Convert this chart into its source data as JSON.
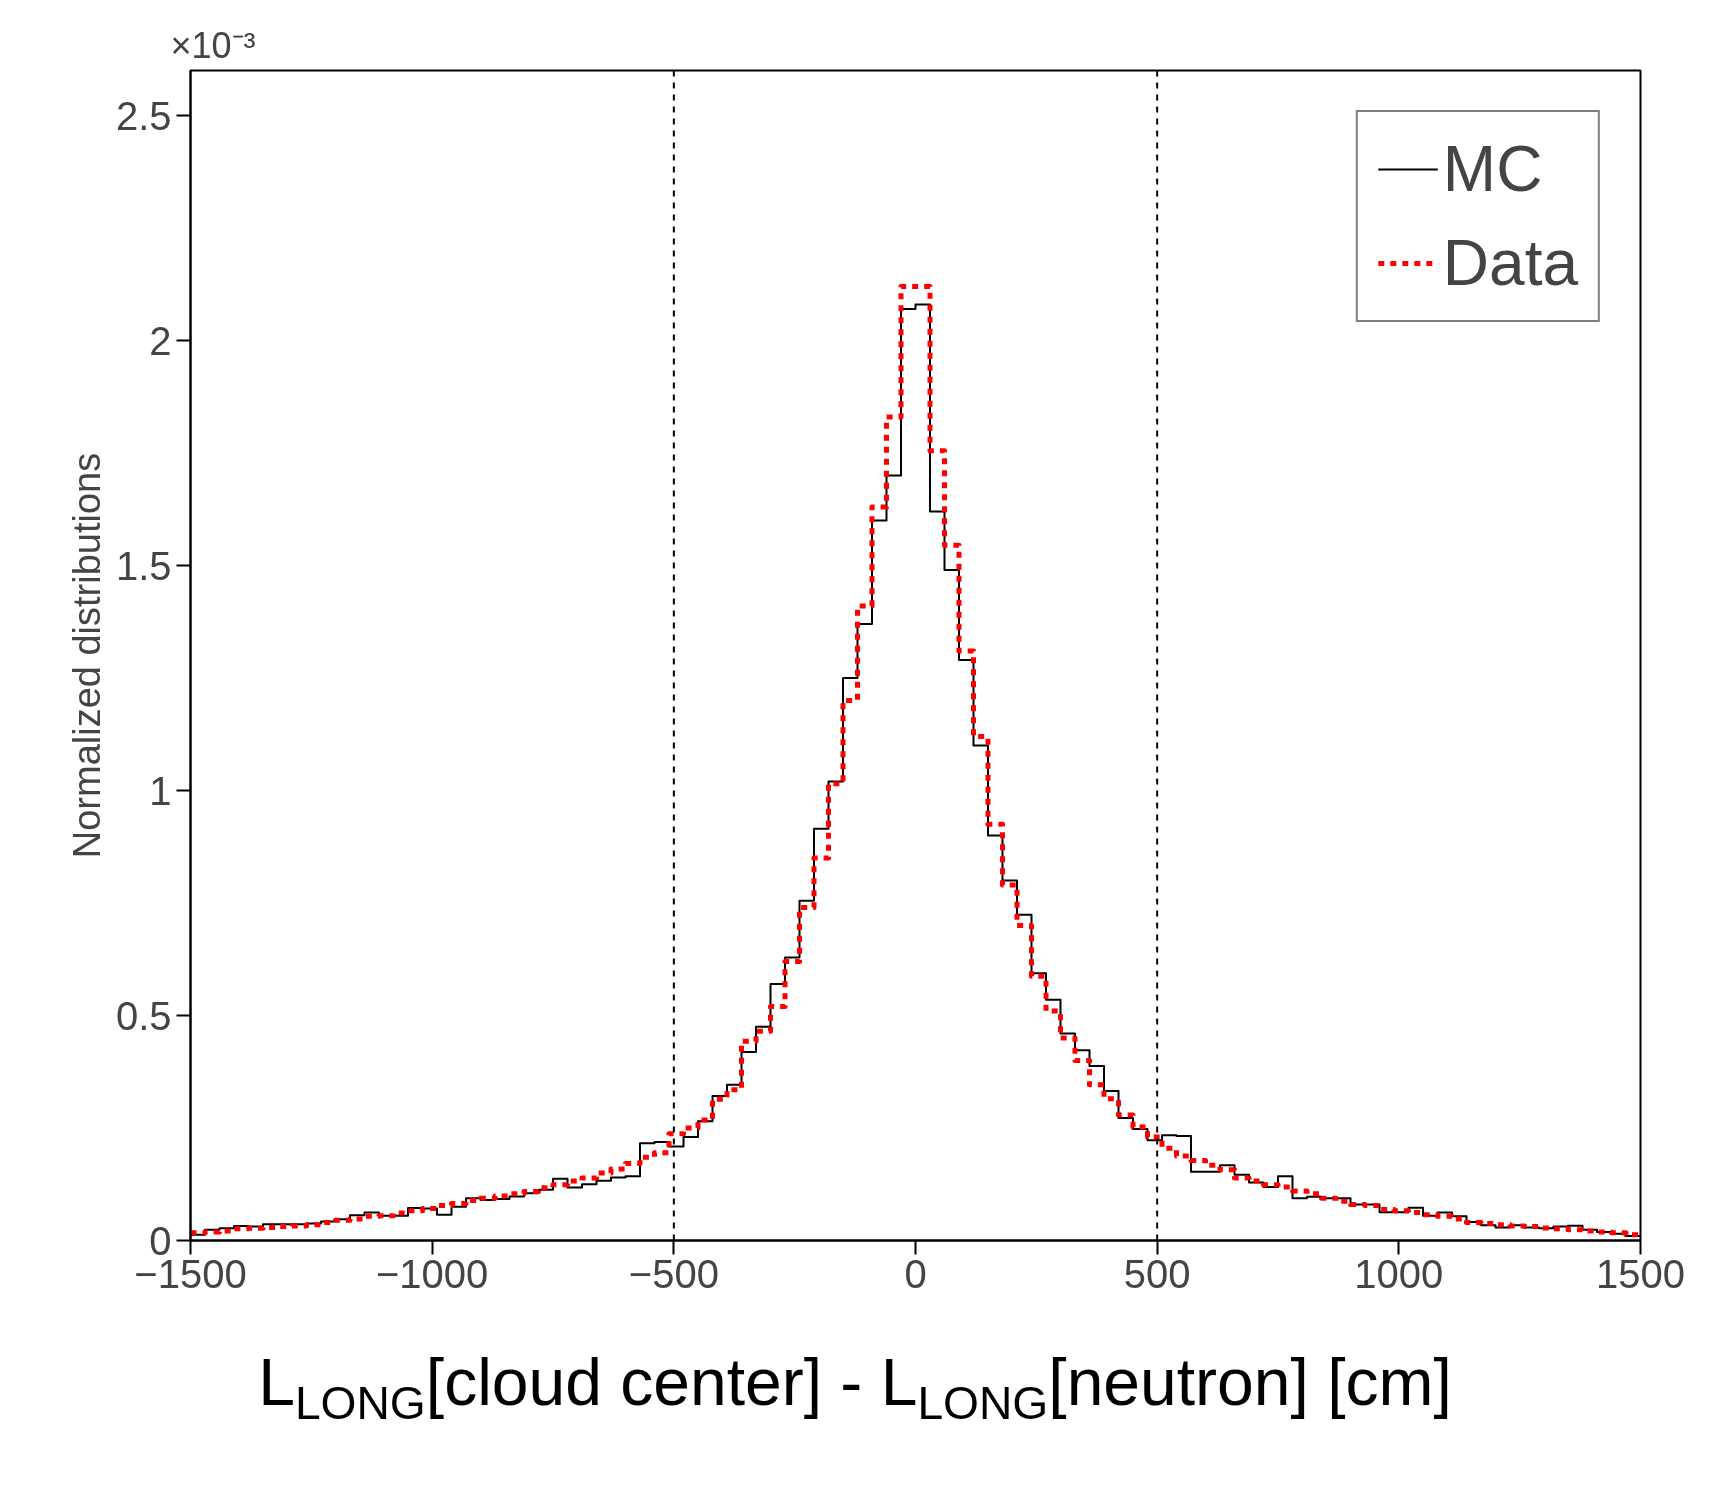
{
  "chart_data": {
    "type": "histogram",
    "ylabel": "Normalized distributions",
    "xlabel": "L$_{LONG}$[cloud center] - L$_{LONG}$[neutron] [cm]",
    "annotations": [
      "×10⁻³"
    ],
    "bins": [
      -1500,
      -1470,
      -1440,
      -1410,
      -1380,
      -1350,
      -1320,
      -1290,
      -1260,
      -1230,
      -1200,
      -1170,
      -1140,
      -1110,
      -1080,
      -1050,
      -1020,
      -990,
      -960,
      -930,
      -900,
      -870,
      -840,
      -810,
      -780,
      -750,
      -720,
      -690,
      -660,
      -630,
      -600,
      -570,
      -540,
      -510,
      -480,
      -450,
      -420,
      -390,
      -360,
      -330,
      -300,
      -270,
      -240,
      -210,
      -180,
      -150,
      -120,
      -90,
      -60,
      -30,
      0,
      30,
      60,
      90,
      120,
      150,
      180,
      210,
      240,
      270,
      300,
      330,
      360,
      390,
      420,
      450,
      480,
      510,
      540,
      570,
      600,
      630,
      660,
      690,
      720,
      750,
      780,
      810,
      840,
      870,
      900,
      930,
      960,
      990,
      1020,
      1050,
      1080,
      1110,
      1140,
      1170,
      1200,
      1230,
      1260,
      1290,
      1320,
      1350,
      1380,
      1410,
      1440,
      1470,
      1500
    ],
    "series": [
      {
        "name": "MC",
        "color": "#000000",
        "line_style": "solid",
        "values": [
          0.013,
          0.024,
          0.027,
          0.032,
          0.031,
          0.036,
          0.036,
          0.036,
          0.038,
          0.042,
          0.047,
          0.056,
          0.062,
          0.055,
          0.055,
          0.072,
          0.071,
          0.057,
          0.075,
          0.094,
          0.09,
          0.092,
          0.098,
          0.105,
          0.113,
          0.137,
          0.118,
          0.125,
          0.133,
          0.14,
          0.143,
          0.216,
          0.219,
          0.209,
          0.23,
          0.265,
          0.321,
          0.346,
          0.419,
          0.475,
          0.57,
          0.629,
          0.755,
          0.915,
          1.02,
          1.25,
          1.37,
          1.6,
          1.7,
          2.07,
          2.08,
          1.62,
          1.49,
          1.29,
          1.1,
          0.9,
          0.8,
          0.724,
          0.594,
          0.535,
          0.46,
          0.423,
          0.388,
          0.332,
          0.272,
          0.248,
          0.223,
          0.234,
          0.232,
          0.153,
          0.153,
          0.167,
          0.146,
          0.129,
          0.119,
          0.143,
          0.094,
          0.097,
          0.094,
          0.094,
          0.08,
          0.08,
          0.063,
          0.063,
          0.073,
          0.055,
          0.062,
          0.054,
          0.041,
          0.034,
          0.029,
          0.034,
          0.029,
          0.027,
          0.031,
          0.033,
          0.024,
          0.019,
          0.015,
          0.01
        ]
      },
      {
        "name": "Data",
        "color": "#ff0000",
        "line_style": "dashed",
        "values": [
          0.017,
          0.019,
          0.021,
          0.026,
          0.027,
          0.029,
          0.031,
          0.032,
          0.035,
          0.04,
          0.045,
          0.048,
          0.054,
          0.055,
          0.061,
          0.066,
          0.071,
          0.078,
          0.082,
          0.089,
          0.094,
          0.099,
          0.104,
          0.109,
          0.117,
          0.124,
          0.132,
          0.139,
          0.15,
          0.159,
          0.171,
          0.185,
          0.195,
          0.237,
          0.25,
          0.268,
          0.314,
          0.335,
          0.443,
          0.465,
          0.52,
          0.62,
          0.74,
          0.85,
          1.015,
          1.2,
          1.41,
          1.63,
          1.83,
          2.12,
          2.12,
          1.755,
          1.545,
          1.31,
          1.12,
          0.925,
          0.79,
          0.7,
          0.587,
          0.51,
          0.45,
          0.4,
          0.346,
          0.315,
          0.279,
          0.252,
          0.23,
          0.205,
          0.188,
          0.178,
          0.167,
          0.157,
          0.139,
          0.132,
          0.124,
          0.119,
          0.11,
          0.104,
          0.094,
          0.087,
          0.08,
          0.078,
          0.069,
          0.066,
          0.062,
          0.057,
          0.054,
          0.048,
          0.04,
          0.038,
          0.035,
          0.032,
          0.031,
          0.028,
          0.026,
          0.024,
          0.021,
          0.019,
          0.017,
          0.013
        ]
      }
    ],
    "xlim": [
      -1500,
      1500
    ],
    "ylim": [
      0,
      2.6
    ],
    "xticks": [
      {
        "value": -1500,
        "label": "−1500"
      },
      {
        "value": -1000,
        "label": "−1000"
      },
      {
        "value": -500,
        "label": "−500"
      },
      0,
      500,
      1000,
      1500
    ],
    "yticks": [
      0,
      0.5,
      1,
      1.5,
      2,
      2.5
    ],
    "ref_lines": [
      {
        "axis": "x",
        "value": -500,
        "color": "#000000",
        "line_style": "dashed"
      },
      {
        "axis": "x",
        "value": 500,
        "color": "#000000",
        "line_style": "dashed"
      }
    ],
    "legend": "top right",
    "grid": false
  }
}
